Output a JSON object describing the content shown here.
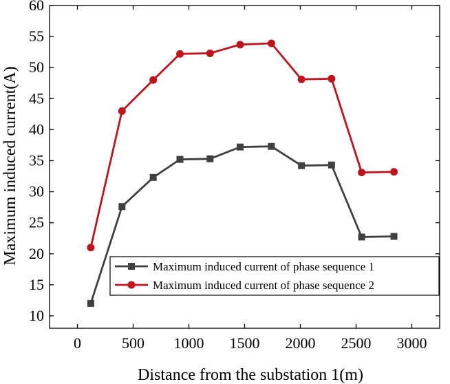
{
  "chart_data": {
    "type": "line",
    "title": "",
    "xlabel": "Distance from the substation 1(m)",
    "ylabel": "Maximum induced current(A)",
    "xlim": [
      -250,
      3250
    ],
    "ylim": [
      8,
      60
    ],
    "xticks": [
      0,
      500,
      1000,
      1500,
      2000,
      2500,
      3000
    ],
    "yticks": [
      10,
      15,
      20,
      25,
      30,
      35,
      40,
      45,
      50,
      55,
      60
    ],
    "grid": false,
    "legend_position": "lower-right",
    "x": [
      120,
      400,
      680,
      920,
      1190,
      1460,
      1740,
      2010,
      2280,
      2550,
      2840
    ],
    "series": [
      {
        "name": "Maximum induced current of phase sequence 1",
        "color": "#404040",
        "marker": "square",
        "values": [
          12.0,
          27.6,
          32.3,
          35.2,
          35.3,
          37.2,
          37.3,
          34.2,
          34.3,
          22.7,
          22.8
        ]
      },
      {
        "name": "Maximum induced current of phase sequence 2",
        "color": "#c0141c",
        "marker": "circle",
        "values": [
          21.0,
          43.0,
          48.0,
          52.2,
          52.3,
          53.7,
          53.9,
          48.1,
          48.2,
          33.1,
          33.2
        ]
      }
    ]
  }
}
